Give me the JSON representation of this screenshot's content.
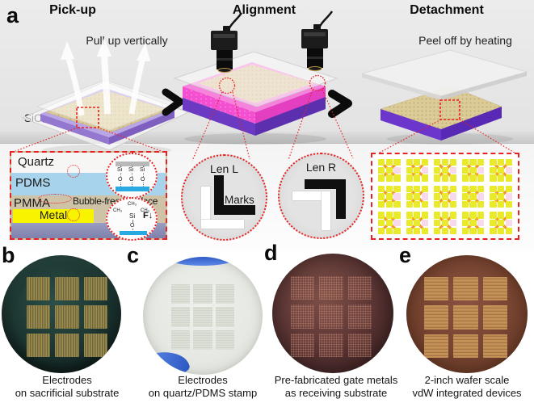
{
  "panel": {
    "a": "a",
    "b": "b",
    "c": "c",
    "d": "d",
    "e": "e"
  },
  "stages": {
    "pickup": {
      "title": "Pick-up",
      "note": "Pull up vertically",
      "substrate": "SiO₂/Si"
    },
    "alignment": {
      "title": "Alignment"
    },
    "detachment": {
      "title": "Detachment",
      "note": "Peel off by heating"
    }
  },
  "inset_stack": {
    "layers": {
      "quartz": "Quartz",
      "pdms": "PDMS",
      "pmma": "PMMA",
      "metal": "Metal"
    },
    "interface_label": "Bubble-free interface",
    "chem_top": {
      "si": "Si",
      "o": "O"
    },
    "chem_bottom": {
      "ch3": "CH₃",
      "si": "Si",
      "o": "O",
      "force": "F↓"
    }
  },
  "lenses": {
    "left": {
      "title": "Len L",
      "marks_label": "Marks"
    },
    "right": {
      "title": "Len R"
    }
  },
  "device_array": {
    "rows": 3,
    "cols": 5
  },
  "wafers": [
    {
      "letter": "b",
      "caption": [
        "Electrodes",
        "on sacrificial substrate"
      ]
    },
    {
      "letter": "c",
      "caption": [
        "Electrodes",
        "on quartz/PDMS stamp"
      ]
    },
    {
      "letter": "d",
      "caption": [
        "Pre-fabricated gate metals",
        "as receiving substrate"
      ]
    },
    {
      "letter": "e",
      "caption": [
        "2-inch wafer scale",
        "vdW integrated devices"
      ]
    }
  ],
  "colors": {
    "accent_red": "#e82222",
    "magenta": "#ef4cd6",
    "purple": "#6c3ac2",
    "gold": "#dbcb96",
    "pdms_blue": "#a7d3ec",
    "metal_yellow": "#f8f400",
    "interface_blue": "#29a9e1"
  }
}
